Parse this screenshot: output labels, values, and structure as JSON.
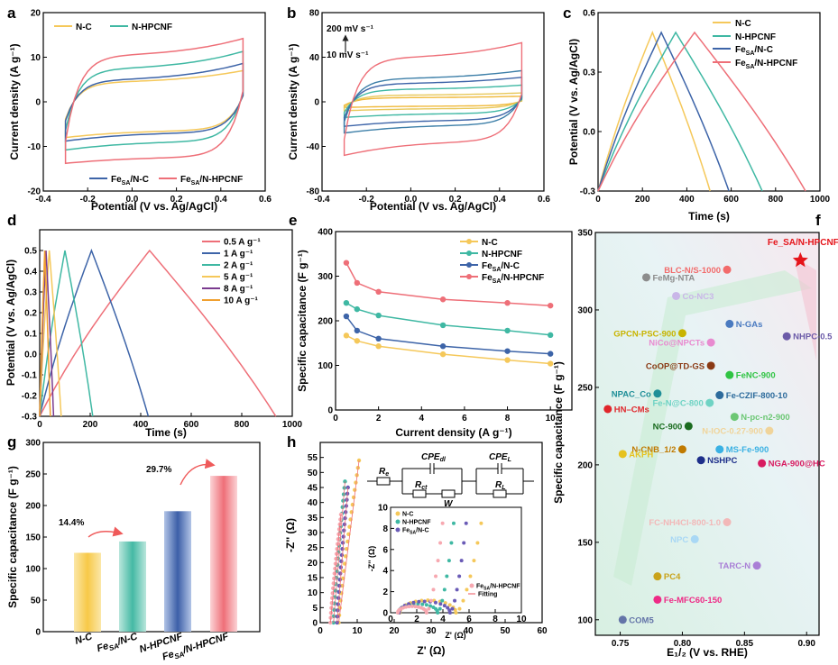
{
  "colors": {
    "nc": "#f5c85a",
    "nhpcnf": "#3fb8a3",
    "fesa_nc": "#3d64a8",
    "fesa_nhpcnf": "#ee6f78",
    "star": "#e5141a"
  },
  "chart_data": [
    {
      "panel": "a",
      "type": "line",
      "title": "",
      "xlabel": "Potential (V vs. Ag/AgCl)",
      "ylabel": "Current density (A g⁻¹)",
      "xlim": [
        -0.4,
        0.6
      ],
      "ylim": [
        -20,
        20
      ],
      "xticks": [
        "-0.4",
        "-0.2",
        "0.0",
        "0.2",
        "0.4",
        "0.6"
      ],
      "yticks": [
        "20",
        "10",
        "0",
        "-10",
        "-20"
      ],
      "legend": [
        "N-C",
        "N-HPCNF",
        "Fe_SA/N-C",
        "Fe_SA/N-HPCNF"
      ],
      "series": [
        {
          "name": "N-C",
          "upper": 4.5,
          "lower": -6.5,
          "ymax": 7.0,
          "ymin": -8.0
        },
        {
          "name": "N-HPCNF",
          "upper": 7.5,
          "lower": -9.0,
          "ymax": 11.3,
          "ymin": -10.8
        },
        {
          "name": "Fe_SA/N-C",
          "upper": 5.0,
          "lower": -7.0,
          "ymax": 8.6,
          "ymin": -8.8
        },
        {
          "name": "Fe_SA/N-HPCNF",
          "upper": 10.5,
          "lower": -12.5,
          "ymax": 14.2,
          "ymin": -13.8
        }
      ]
    },
    {
      "panel": "b",
      "type": "line",
      "xlabel": "Potential (V vs. Ag/AgCl)",
      "ylabel": "Current density (A g⁻¹)",
      "xlim": [
        -0.4,
        0.6
      ],
      "ylim": [
        -80,
        80
      ],
      "xticks": [
        "-0.4",
        "-0.2",
        "0.0",
        "0.2",
        "0.4",
        "0.6"
      ],
      "yticks": [
        "80",
        "40",
        "0",
        "-40",
        "-80"
      ],
      "annotations": [
        "200 mV s⁻¹",
        "10 mV s⁻¹"
      ],
      "series": [
        {
          "name": "10 mV s⁻¹",
          "ymax": 5,
          "ymin": -5
        },
        {
          "name": "20 mV s⁻¹",
          "ymax": 8,
          "ymin": -8
        },
        {
          "name": "50 mV s⁻¹",
          "ymax": 15,
          "ymin": -14
        },
        {
          "name": "100 mV s⁻¹",
          "ymax": 22,
          "ymin": -22
        },
        {
          "name": "150 mV s⁻¹",
          "ymax": 28,
          "ymin": -28
        },
        {
          "name": "200 mV s⁻¹",
          "ymax": 53,
          "ymin": -48
        }
      ]
    },
    {
      "panel": "c",
      "type": "line",
      "xlabel": "Time (s)",
      "ylabel": "Potential (V vs. Ag/AgCl)",
      "xlim": [
        0,
        1000
      ],
      "ylim": [
        -0.3,
        0.6
      ],
      "xticks": [
        "0",
        "200",
        "400",
        "600",
        "800",
        "1000"
      ],
      "yticks": [
        "0.6",
        "0.3",
        "0.0",
        "-0.3"
      ],
      "legend": [
        "N-C",
        "N-HPCNF",
        "Fe_SA/N-C",
        "Fe_SA/N-HPCNF"
      ],
      "series": [
        {
          "name": "N-C",
          "t_peak": 245,
          "t_end": 505
        },
        {
          "name": "N-HPCNF",
          "t_peak": 350,
          "t_end": 740
        },
        {
          "name": "Fe_SA/N-C",
          "t_peak": 285,
          "t_end": 590
        },
        {
          "name": "Fe_SA/N-HPCNF",
          "t_peak": 435,
          "t_end": 935
        }
      ]
    },
    {
      "panel": "d",
      "type": "line",
      "xlabel": "Time (s)",
      "ylabel": "Potential (V vs. Ag/AgCl)",
      "xlim": [
        0,
        1000
      ],
      "ylim": [
        -0.3,
        0.6
      ],
      "xticks": [
        "0",
        "200",
        "400",
        "600",
        "800",
        "1000"
      ],
      "yticks": [
        "0.5",
        "0.4",
        "0.3",
        "0.2",
        "0.1",
        "0.0",
        "-0.1",
        "-0.2",
        "-0.3"
      ],
      "legend": [
        "0.5 A g⁻¹",
        "1 A g⁻¹",
        "2 A g⁻¹",
        "5 A g⁻¹",
        "8 A g⁻¹",
        "10 A g⁻¹"
      ],
      "series": [
        {
          "name": "0.5 A g⁻¹",
          "t_peak": 435,
          "t_end": 935
        },
        {
          "name": "1 A g⁻¹",
          "t_peak": 205,
          "t_end": 430
        },
        {
          "name": "2 A g⁻¹",
          "t_peak": 100,
          "t_end": 210
        },
        {
          "name": "5 A g⁻¹",
          "t_peak": 38,
          "t_end": 85
        },
        {
          "name": "8 A g⁻¹",
          "t_peak": 25,
          "t_end": 55
        },
        {
          "name": "10 A g⁻¹",
          "t_peak": 20,
          "t_end": 42
        }
      ]
    },
    {
      "panel": "e",
      "type": "line",
      "xlabel": "Current density (A g⁻¹)",
      "ylabel": "Specific capacitance (F g⁻¹)",
      "xlim": [
        0,
        11
      ],
      "ylim": [
        0,
        400
      ],
      "xticks": [
        "0",
        "2",
        "4",
        "6",
        "8",
        "10"
      ],
      "yticks": [
        "400",
        "300",
        "200",
        "100",
        "0"
      ],
      "x": [
        0.5,
        1,
        2,
        5,
        8,
        10
      ],
      "legend": [
        "N-C",
        "N-HPCNF",
        "Fe_SA/N-C",
        "Fe_SA/N-HPCNF"
      ],
      "series": [
        {
          "name": "N-C",
          "values": [
            167,
            155,
            143,
            125,
            112,
            104
          ]
        },
        {
          "name": "N-HPCNF",
          "values": [
            240,
            226,
            212,
            190,
            178,
            168
          ]
        },
        {
          "name": "Fe_SA/N-C",
          "values": [
            210,
            178,
            160,
            143,
            132,
            126
          ]
        },
        {
          "name": "Fe_SA/N-HPCNF",
          "values": [
            330,
            285,
            265,
            248,
            240,
            234
          ]
        }
      ]
    },
    {
      "panel": "f",
      "type": "scatter",
      "xlabel": "E₁/₂ (V vs. RHE)",
      "ylabel": "Specific capacitance (F g⁻¹)",
      "xlim": [
        0.73,
        0.91
      ],
      "ylim": [
        90,
        350
      ],
      "xticks": [
        "0.75",
        "0.80",
        "0.85",
        "0.90"
      ],
      "yticks": [
        "350",
        "300",
        "250",
        "200",
        "150",
        "100"
      ],
      "points": [
        {
          "label": "Fe_SA/N-HPCNF",
          "x": 0.895,
          "y": 332,
          "color": "#e5141a",
          "star": true
        },
        {
          "label": "BLC-N/S-1000",
          "x": 0.836,
          "y": 326,
          "color": "#f26b6b"
        },
        {
          "label": "FeMg-NTA",
          "x": 0.771,
          "y": 321,
          "color": "#8c8c8c"
        },
        {
          "label": "Co-NC3",
          "x": 0.795,
          "y": 309,
          "color": "#c9b6e8"
        },
        {
          "label": "N-GAs",
          "x": 0.838,
          "y": 291,
          "color": "#4a7ac0"
        },
        {
          "label": "GPCN-PSC-900",
          "x": 0.8,
          "y": 285,
          "color": "#c8b400"
        },
        {
          "label": "NHPC-0.5",
          "x": 0.884,
          "y": 283,
          "color": "#6b5aa8"
        },
        {
          "label": "NiCo@NPCTs",
          "x": 0.823,
          "y": 279,
          "color": "#e88bd0"
        },
        {
          "label": "CoOP@TD-GS",
          "x": 0.823,
          "y": 264,
          "color": "#8a3a14"
        },
        {
          "label": "FeNC-900",
          "x": 0.838,
          "y": 258,
          "color": "#2fc443"
        },
        {
          "label": "NPAC_Co",
          "x": 0.78,
          "y": 246,
          "color": "#1f8f98"
        },
        {
          "label": "Fe-CZIF-800-10",
          "x": 0.83,
          "y": 245,
          "color": "#2d6b9c"
        },
        {
          "label": "Fe-N@C-800",
          "x": 0.822,
          "y": 240,
          "color": "#6fd3c4"
        },
        {
          "label": "HN–CMs",
          "x": 0.74,
          "y": 236,
          "color": "#e0262b"
        },
        {
          "label": "N-pc-n2-900",
          "x": 0.842,
          "y": 231,
          "color": "#6cc774"
        },
        {
          "label": "NC-900",
          "x": 0.805,
          "y": 225,
          "color": "#1a6b1f"
        },
        {
          "label": "N-IOC-0.27-900",
          "x": 0.87,
          "y": 222,
          "color": "#f0d49a"
        },
        {
          "label": "N-CNB_1/2",
          "x": 0.8,
          "y": 210,
          "color": "#c07a00"
        },
        {
          "label": "MS-Fe-900",
          "x": 0.83,
          "y": 210,
          "color": "#3ab1e3"
        },
        {
          "label": "AKPH",
          "x": 0.752,
          "y": 207,
          "color": "#e6c21e"
        },
        {
          "label": "NSHPC",
          "x": 0.815,
          "y": 203,
          "color": "#1d2f8a"
        },
        {
          "label": "NGA-900@HC",
          "x": 0.864,
          "y": 201,
          "color": "#d81b60"
        },
        {
          "label": "FC-NH4Cl-800-1.0",
          "x": 0.836,
          "y": 163,
          "color": "#f2b8b8"
        },
        {
          "label": "NPC",
          "x": 0.81,
          "y": 152,
          "color": "#a9d8f5"
        },
        {
          "label": "TARC-N",
          "x": 0.86,
          "y": 135,
          "color": "#a97fd6"
        },
        {
          "label": "PC4",
          "x": 0.78,
          "y": 128,
          "color": "#c9a31a"
        },
        {
          "label": "Fe-MFC60-150",
          "x": 0.78,
          "y": 113,
          "color": "#ee2a86"
        },
        {
          "label": "COM5",
          "x": 0.752,
          "y": 100,
          "color": "#6474a8"
        }
      ]
    },
    {
      "panel": "g",
      "type": "bar",
      "ylabel": "Specific capacitance (F g⁻¹)",
      "ylim": [
        0,
        300
      ],
      "yticks": [
        "300",
        "250",
        "200",
        "150",
        "100",
        "50",
        "0"
      ],
      "categories": [
        "N-C",
        "Fe_SA/N-C",
        "N-HPCNF",
        "Fe_SA/N-HPCNF"
      ],
      "values": [
        125,
        143,
        191,
        247
      ],
      "annotations": [
        "14.4%",
        "29.7%"
      ]
    },
    {
      "panel": "h",
      "type": "scatter",
      "xlabel": "Z' (Ω)",
      "ylabel": "-Z'' (Ω)",
      "xlim": [
        0,
        60
      ],
      "ylim": [
        0,
        60
      ],
      "xticks": [
        "0",
        "10",
        "20",
        "30",
        "40",
        "50",
        "60"
      ],
      "yticks": [
        "55",
        "50",
        "45",
        "40",
        "35",
        "30",
        "25",
        "20",
        "15",
        "10",
        "5",
        "0"
      ],
      "inset": {
        "xlim": [
          0,
          10
        ],
        "ylim": [
          0,
          10
        ],
        "xticks": [
          "0",
          "2",
          "4",
          "6",
          "8",
          "10"
        ],
        "yticks": [
          "10",
          "8",
          "6",
          "4",
          "2",
          "0"
        ],
        "xlabel": "Z' (Ω)",
        "ylabel": "-Z'' (Ω)",
        "legend": [
          "N-C",
          "N-HPCNF",
          "Fe_SA/N-C",
          "Fe_SA/N-HPCNF",
          "Fitting"
        ]
      },
      "circuit_labels": [
        "Re",
        "CPEdl",
        "Rct",
        "W",
        "CPEL",
        "RL"
      ],
      "series": [
        {
          "name": "N-C",
          "rs": 0.7,
          "rct": 4.3,
          "xend": 10.5,
          "yend": 54
        },
        {
          "name": "N-HPCNF",
          "rs": 0.6,
          "rct": 3.0,
          "xend": 6.7,
          "yend": 47
        },
        {
          "name": "Fe_SA/N-C",
          "rs": 0.65,
          "rct": 3.9,
          "xend": 7.5,
          "yend": 45
        },
        {
          "name": "Fe_SA/N-HPCNF",
          "rs": 0.55,
          "rct": 2.2,
          "xend": 5.6,
          "yend": 36
        }
      ]
    }
  ],
  "text": {
    "a": {
      "panel": "a",
      "xlabel": "Potential (V vs. Ag/AgCl)",
      "ylabel": "Current density (A g⁻¹)",
      "leg1": "N-C",
      "leg2": "N-HPCNF",
      "leg3a": "Fe",
      "leg3b": "SA",
      "leg3c": "/N-C",
      "leg4a": "Fe",
      "leg4b": "SA",
      "leg4c": "/N-HPCNF"
    },
    "b": {
      "panel": "b",
      "xlabel": "Potential (V vs. Ag/AgCl)",
      "ylabel": "Current density (A g⁻¹)",
      "ann_top": "200 mV s⁻¹",
      "ann_bot": "10 mV s⁻¹"
    },
    "c": {
      "panel": "c",
      "xlabel": "Time (s)",
      "ylabel": "Potential (V vs. Ag/AgCl)",
      "leg1": "N-C",
      "leg2": "N-HPCNF",
      "leg3a": "Fe",
      "leg3b": "SA",
      "leg3c": "/N-C",
      "leg4a": "Fe",
      "leg4b": "SA",
      "leg4c": "/N-HPCNF"
    },
    "d": {
      "panel": "d",
      "xlabel": "Time (s)",
      "ylabel": "Potential (V vs. Ag/AgCl)"
    },
    "e": {
      "panel": "e",
      "xlabel": "Current density (A g⁻¹)",
      "ylabel": "Specific capacitance (F g⁻¹)",
      "leg1": "N-C",
      "leg2": "N-HPCNF",
      "leg3a": "Fe",
      "leg3b": "SA",
      "leg3c": "/N-C",
      "leg4a": "Fe",
      "leg4b": "SA",
      "leg4c": "/N-HPCNF"
    },
    "f": {
      "panel": "f",
      "xlabel": "E₁/₂ (V vs. RHE)",
      "ylabel": "Specific capacitance (F g⁻¹)"
    },
    "g": {
      "panel": "g",
      "ylabel": "Specific capacitance (F g⁻¹)",
      "pct1": "14.4%",
      "pct2": "29.7%"
    },
    "h": {
      "panel": "h",
      "xlabel": "Z' (Ω)",
      "ylabel": "-Z'' (Ω)",
      "in_xlabel": "Z' (Ω)",
      "in_ylabel": "-Z'' (Ω)",
      "in_leg1": "N-C",
      "in_leg2": "N-HPCNF",
      "in_leg3a": "Fe",
      "in_leg3b": "SA",
      "in_leg3c": "/N-C",
      "in_leg4a": "Fe",
      "in_leg4b": "SA",
      "in_leg4c": "/N-HPCNF",
      "in_leg5": "Fitting",
      "c_re": "R",
      "c_re_s": "e",
      "c_cpedl": "CPE",
      "c_cpedl_s": "dl",
      "c_rct": "R",
      "c_rct_s": "ct",
      "c_w": "W",
      "c_cpel": "CPE",
      "c_cpel_s": "L",
      "c_rl": "R",
      "c_rl_s": "L"
    }
  }
}
